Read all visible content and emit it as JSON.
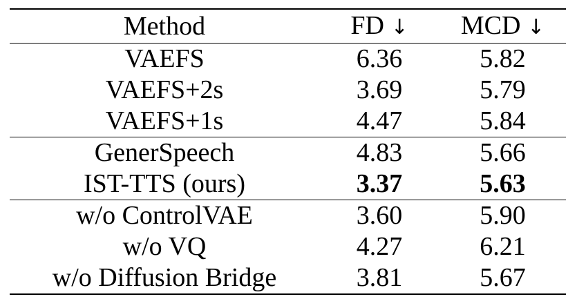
{
  "table": {
    "headers": [
      {
        "label": "Method",
        "arrow": ""
      },
      {
        "label": "FD ",
        "arrow": "↓"
      },
      {
        "label": "MCD ",
        "arrow": "↓"
      }
    ],
    "rows": [
      {
        "method": "VAEFS",
        "fd": "6.36",
        "mcd": "5.82"
      },
      {
        "method": "VAEFS+2s",
        "fd": "3.69",
        "mcd": "5.79"
      },
      {
        "method": "VAEFS+1s",
        "fd": "4.47",
        "mcd": "5.84"
      },
      {
        "method": "GenerSpeech",
        "fd": "4.83",
        "mcd": "5.66"
      },
      {
        "method": "IST-TTS (ours)",
        "fd": "3.37",
        "mcd": "5.63"
      },
      {
        "method": "w/o ControlVAE",
        "fd": "3.60",
        "mcd": "5.90"
      },
      {
        "method": "w/o VQ",
        "fd": "4.27",
        "mcd": "6.21"
      },
      {
        "method": "w/o Diffusion Bridge",
        "fd": "3.81",
        "mcd": "5.67"
      }
    ]
  }
}
